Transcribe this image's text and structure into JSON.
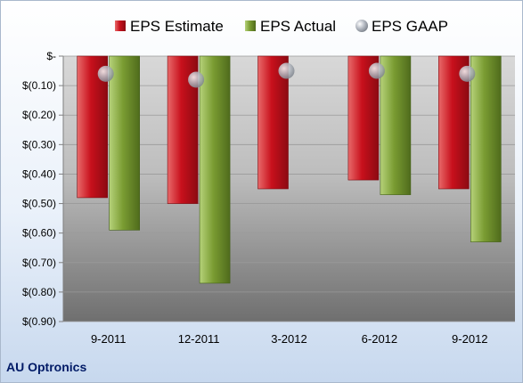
{
  "chart_data": {
    "type": "bar",
    "categories": [
      "9-2011",
      "12-2011",
      "3-2012",
      "6-2012",
      "9-2012"
    ],
    "series": [
      {
        "name": "EPS Estimate",
        "values": [
          -0.48,
          -0.5,
          -0.45,
          -0.42,
          -0.45
        ],
        "color": "#d4202b"
      },
      {
        "name": "EPS Actual",
        "values": [
          -0.59,
          -0.77,
          null,
          -0.47,
          -0.63
        ],
        "color": "#7fa33a"
      },
      {
        "name": "EPS GAAP",
        "values": [
          -0.06,
          -0.08,
          -0.05,
          -0.05,
          -0.06
        ],
        "color": "#b0b6be",
        "marker": "sphere"
      }
    ],
    "yticks": [
      0,
      -0.1,
      -0.2,
      -0.3,
      -0.4,
      -0.5,
      -0.6,
      -0.7,
      -0.8,
      -0.9
    ],
    "ytick_labels": [
      "$-",
      "$(0.10)",
      "$(0.20)",
      "$(0.30)",
      "$(0.40)",
      "$(0.50)",
      "$(0.60)",
      "$(0.70)",
      "$(0.80)",
      "$(0.90)"
    ],
    "ylim": [
      -0.9,
      0
    ],
    "grid": true,
    "legend_position": "top"
  },
  "company": "AU Optronics"
}
